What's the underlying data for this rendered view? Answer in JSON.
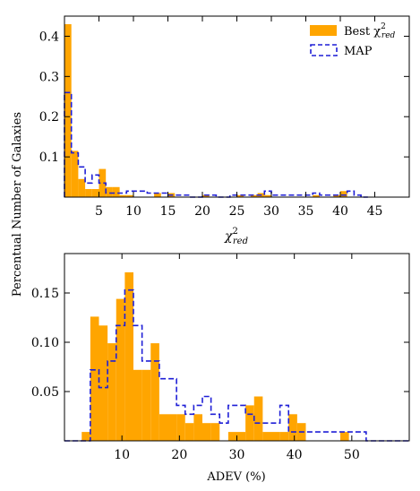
{
  "figure": {
    "ylabel": "Percentual Number of Galaxies"
  },
  "colors": {
    "best": "#FFA500",
    "map": "#1f1fd6",
    "axis": "#000000"
  },
  "chart_data": [
    {
      "type": "histogram",
      "xlabel": "χ²red",
      "xlabel_base": "χ",
      "xlabel_sup": "2",
      "xlabel_sub": "red",
      "xlim": [
        0,
        50
      ],
      "ylim": [
        0,
        0.45
      ],
      "xticks": [
        5,
        10,
        15,
        20,
        25,
        30,
        35,
        40,
        45
      ],
      "yticks": [
        0.1,
        0.2,
        0.3,
        0.4
      ],
      "ytick_labels": [
        "0.1",
        "0.2",
        "0.3",
        "0.4"
      ],
      "legend_position": "top-right",
      "legend": [
        {
          "key": "best",
          "label_base": "Best χ",
          "label_sup": "2",
          "label_sub": "red",
          "style": "filled"
        },
        {
          "key": "map",
          "label": "MAP",
          "style": "dashed-step"
        }
      ],
      "series": [
        {
          "key": "best",
          "style": "filled",
          "bins": [
            [
              0,
              1,
              0.43
            ],
            [
              1,
              2,
              0.115
            ],
            [
              2,
              3,
              0.045
            ],
            [
              3,
              4,
              0.02
            ],
            [
              4,
              5,
              0.02
            ],
            [
              5,
              6,
              0.07
            ],
            [
              6,
              7,
              0.025
            ],
            [
              7,
              8,
              0.025
            ],
            [
              8,
              9,
              0.005
            ],
            [
              9,
              10,
              0.005
            ],
            [
              13,
              14,
              0.01
            ],
            [
              15,
              16,
              0.01
            ],
            [
              20,
              21,
              0.005
            ],
            [
              25,
              26,
              0.005
            ],
            [
              27,
              28,
              0.005
            ],
            [
              28,
              29,
              0.01
            ],
            [
              29,
              30,
              0.005
            ],
            [
              36,
              37,
              0.005
            ],
            [
              39,
              40,
              0.005
            ],
            [
              40,
              41,
              0.015
            ]
          ]
        },
        {
          "key": "map",
          "style": "dashed-step",
          "bins": [
            [
              0,
              1,
              0.26
            ],
            [
              1,
              2,
              0.11
            ],
            [
              2,
              3,
              0.075
            ],
            [
              3,
              4,
              0.035
            ],
            [
              4,
              5,
              0.055
            ],
            [
              5,
              6,
              0.035
            ],
            [
              6,
              7,
              0.01
            ],
            [
              7,
              8,
              0.01
            ],
            [
              8,
              9,
              0.01
            ],
            [
              9,
              10,
              0.015
            ],
            [
              10,
              11,
              0.015
            ],
            [
              11,
              12,
              0.015
            ],
            [
              12,
              13,
              0.01
            ],
            [
              13,
              14,
              0.01
            ],
            [
              14,
              15,
              0.01
            ],
            [
              15,
              16,
              0.005
            ],
            [
              16,
              17,
              0.005
            ],
            [
              17,
              18,
              0.005
            ],
            [
              18,
              19,
              0.0
            ],
            [
              19,
              20,
              0.0
            ],
            [
              20,
              21,
              0.005
            ],
            [
              21,
              22,
              0.005
            ],
            [
              22,
              23,
              0.0
            ],
            [
              23,
              24,
              0.0
            ],
            [
              24,
              25,
              0.005
            ],
            [
              25,
              26,
              0.005
            ],
            [
              26,
              27,
              0.005
            ],
            [
              27,
              28,
              0.005
            ],
            [
              28,
              29,
              0.005
            ],
            [
              29,
              30,
              0.015
            ],
            [
              30,
              31,
              0.005
            ],
            [
              31,
              32,
              0.005
            ],
            [
              32,
              33,
              0.005
            ],
            [
              33,
              34,
              0.005
            ],
            [
              34,
              35,
              0.005
            ],
            [
              35,
              36,
              0.005
            ],
            [
              36,
              37,
              0.01
            ],
            [
              37,
              38,
              0.005
            ],
            [
              38,
              39,
              0.005
            ],
            [
              39,
              40,
              0.005
            ],
            [
              40,
              41,
              0.005
            ],
            [
              41,
              42,
              0.015
            ],
            [
              42,
              43,
              0.005
            ],
            [
              43,
              44,
              0.0
            ]
          ]
        }
      ]
    },
    {
      "type": "histogram",
      "xlabel": "ADEV (%)",
      "xlim": [
        0,
        60
      ],
      "ylim": [
        0,
        0.19
      ],
      "xticks": [
        10,
        20,
        30,
        40,
        50
      ],
      "yticks": [
        0.05,
        0.1,
        0.15
      ],
      "ytick_labels": [
        "0.05",
        "0.10",
        "0.15"
      ],
      "series": [
        {
          "key": "best",
          "style": "filled",
          "bins": [
            [
              3,
              4.5,
              0.009
            ],
            [
              4.5,
              6,
              0.126
            ],
            [
              6,
              7.5,
              0.117
            ],
            [
              7.5,
              9,
              0.099
            ],
            [
              9,
              10.5,
              0.144
            ],
            [
              10.5,
              12,
              0.171
            ],
            [
              12,
              13.5,
              0.072
            ],
            [
              13.5,
              15,
              0.072
            ],
            [
              15,
              16.5,
              0.099
            ],
            [
              16.5,
              18,
              0.027
            ],
            [
              18,
              19.5,
              0.027
            ],
            [
              19.5,
              21,
              0.027
            ],
            [
              21,
              22.5,
              0.018
            ],
            [
              22.5,
              24,
              0.027
            ],
            [
              24,
              25.5,
              0.018
            ],
            [
              25.5,
              27,
              0.018
            ],
            [
              27,
              28.5,
              0.0
            ],
            [
              28.5,
              30,
              0.009
            ],
            [
              30,
              31.5,
              0.009
            ],
            [
              31.5,
              33,
              0.036
            ],
            [
              33,
              34.5,
              0.045
            ],
            [
              34.5,
              36,
              0.009
            ],
            [
              36,
              37.5,
              0.009
            ],
            [
              37.5,
              39,
              0.009
            ],
            [
              39,
              40.5,
              0.027
            ],
            [
              40.5,
              42,
              0.018
            ],
            [
              42,
              43.5,
              0.0
            ],
            [
              43.5,
              45,
              0.0
            ],
            [
              45,
              46.5,
              0.0
            ],
            [
              46.5,
              48,
              0.0
            ],
            [
              48,
              49.5,
              0.009
            ],
            [
              49.5,
              51,
              0.0
            ]
          ]
        },
        {
          "key": "map",
          "style": "dashed-step",
          "bins": [
            [
              0,
              3,
              0.0
            ],
            [
              3,
              4.5,
              0.0
            ],
            [
              4.5,
              6,
              0.072
            ],
            [
              6,
              7.5,
              0.054
            ],
            [
              7.5,
              9,
              0.081
            ],
            [
              9,
              10.5,
              0.117
            ],
            [
              10.5,
              12,
              0.153
            ],
            [
              12,
              13.5,
              0.117
            ],
            [
              13.5,
              15,
              0.081
            ],
            [
              15,
              16.5,
              0.081
            ],
            [
              16.5,
              18,
              0.063
            ],
            [
              18,
              19.5,
              0.063
            ],
            [
              19.5,
              21,
              0.036
            ],
            [
              21,
              22.5,
              0.027
            ],
            [
              22.5,
              24,
              0.036
            ],
            [
              24,
              25.5,
              0.045
            ],
            [
              25.5,
              27,
              0.027
            ],
            [
              27,
              28.5,
              0.018
            ],
            [
              28.5,
              30,
              0.036
            ],
            [
              30,
              31.5,
              0.036
            ],
            [
              31.5,
              33,
              0.027
            ],
            [
              33,
              34.5,
              0.018
            ],
            [
              34.5,
              36,
              0.018
            ],
            [
              36,
              37.5,
              0.018
            ],
            [
              37.5,
              39,
              0.036
            ],
            [
              39,
              40.5,
              0.009
            ],
            [
              40.5,
              42,
              0.009
            ],
            [
              42,
              43.5,
              0.009
            ],
            [
              43.5,
              45,
              0.009
            ],
            [
              45,
              46.5,
              0.009
            ],
            [
              46.5,
              48,
              0.009
            ],
            [
              48,
              49.5,
              0.009
            ],
            [
              49.5,
              51,
              0.009
            ],
            [
              51,
              52.5,
              0.009
            ],
            [
              52.5,
              54,
              0.0
            ],
            [
              54,
              60,
              0.0
            ]
          ]
        }
      ]
    }
  ]
}
